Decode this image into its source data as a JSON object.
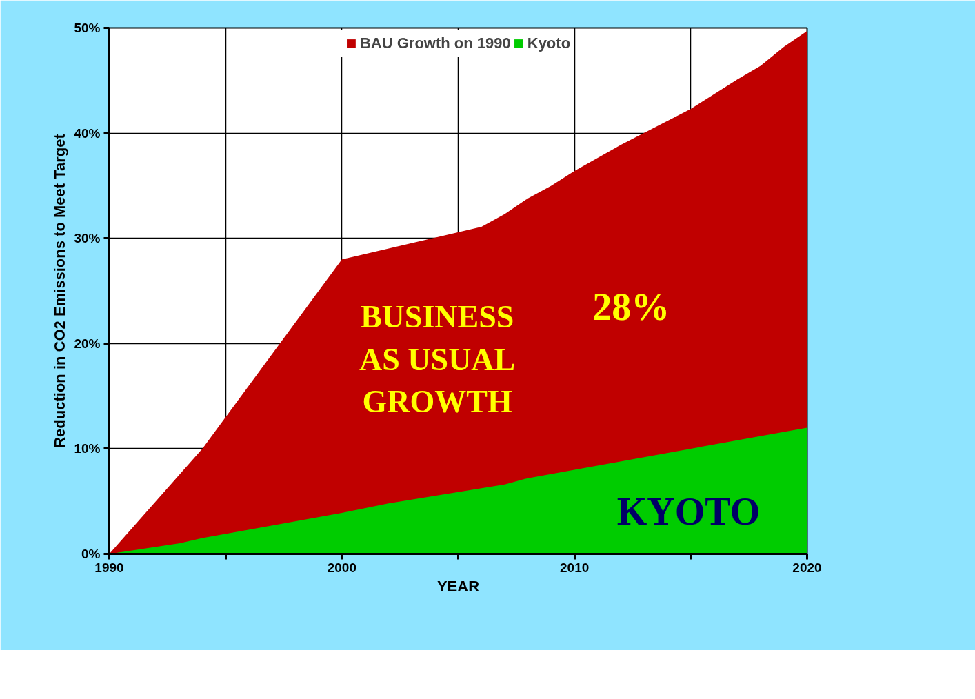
{
  "chart_data": {
    "type": "area",
    "xlabel": "YEAR",
    "ylabel": "Reduction in CO2 Emissions to Meet Target",
    "series": [
      {
        "name": "BAU Growth on 1990",
        "color": "#c00000",
        "x": [
          1990,
          1994,
          1999,
          2000,
          2006,
          2007,
          2008,
          2009,
          2010,
          2012,
          2015,
          2017,
          2018,
          2019,
          2020
        ],
        "values": [
          0,
          10,
          25,
          28,
          31.1,
          32.3,
          33.8,
          35,
          36.4,
          38.9,
          42.3,
          45.1,
          46.4,
          48.2,
          49.7
        ]
      },
      {
        "name": "Kyoto",
        "color": "#00cc00",
        "x": [
          1990,
          1993,
          1994,
          2000,
          2002,
          2007,
          2008,
          2010,
          2015,
          2020
        ],
        "values": [
          0,
          1,
          1.5,
          3.9,
          4.8,
          6.6,
          7.2,
          8,
          10,
          12
        ]
      }
    ],
    "xlim": [
      1990,
      2020
    ],
    "xticks": [
      1990,
      {
        "value": 1995,
        "label": null
      },
      2000,
      {
        "value": 2005,
        "label": null
      },
      2010,
      {
        "value": 2015,
        "label": null
      },
      2020
    ],
    "ylim": [
      0,
      50
    ],
    "yticks": [
      {
        "value": 0,
        "label": "0%"
      },
      {
        "value": 10,
        "label": "10%"
      },
      {
        "value": 20,
        "label": "20%"
      },
      {
        "value": 30,
        "label": "30%"
      },
      {
        "value": 40,
        "label": "40%"
      },
      {
        "value": 50,
        "label": "50%"
      }
    ],
    "grid": true,
    "legend": "top",
    "annotations": [
      "BUSINESS\nAS USUAL\nGROWTH",
      {
        "text": "28%",
        "x": 2010,
        "y": 36.4
      },
      "KYOTO"
    ]
  }
}
